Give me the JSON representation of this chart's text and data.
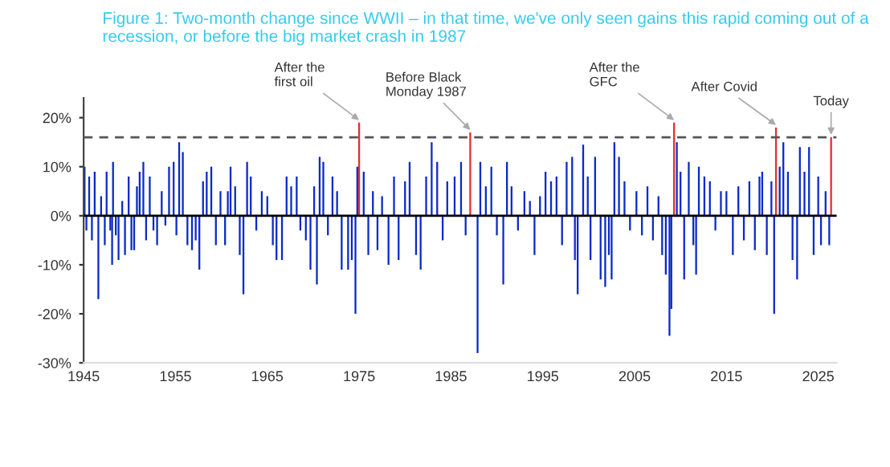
{
  "chart_data": {
    "type": "bar",
    "title": "Figure 1: Two-month change since WWII – in that time, we've only seen gains this rapid coming out of a recession, or before the big market crash in 1987",
    "xlim": [
      1945,
      2027
    ],
    "xticks": [
      1945,
      1955,
      1965,
      1975,
      1985,
      1995,
      2005,
      2015,
      2025
    ],
    "ylim": [
      -30,
      24
    ],
    "yticks": [
      {
        "value": -30,
        "label": "-30%"
      },
      {
        "value": -20,
        "label": "-20%"
      },
      {
        "value": -10,
        "label": "-10%"
      },
      {
        "value": 0,
        "label": "0%"
      },
      {
        "value": 10,
        "label": "10%"
      },
      {
        "value": 20,
        "label": "20%"
      }
    ],
    "grid": false,
    "series": [
      {
        "color": "#0a2ac8",
        "x": [
          1945.1,
          1945.3,
          1945.6,
          1945.9,
          1946.2,
          1946.6,
          1946.9,
          1947.3,
          1947.5,
          1947.9,
          1948.1,
          1948.2,
          1948.5,
          1948.8,
          1949.2,
          1949.5,
          1949.9,
          1950.2,
          1950.5,
          1950.8,
          1951.1,
          1951.5,
          1951.8,
          1952.2,
          1952.6,
          1953.0,
          1953.5,
          1953.9,
          1954.3,
          1954.8,
          1955.1,
          1955.4,
          1955.8,
          1956.3,
          1956.8,
          1957.2,
          1957.6,
          1958.0,
          1958.4,
          1958.9,
          1959.4,
          1959.9,
          1960.4,
          1960.7,
          1961.0,
          1961.5,
          1962.0,
          1962.4,
          1962.8,
          1963.2,
          1963.8,
          1964.4,
          1965.0,
          1965.6,
          1966.0,
          1966.6,
          1967.1,
          1967.6,
          1968.2,
          1968.6,
          1969.2,
          1969.7,
          1970.1,
          1970.4,
          1970.7,
          1971.1,
          1971.6,
          1972.1,
          1972.6,
          1973.1,
          1973.8,
          1974.2,
          1974.6,
          1974.8,
          1975.5,
          1976.0,
          1976.5,
          1977.0,
          1977.5,
          1978.2,
          1978.8,
          1979.3,
          1980.0,
          1980.5,
          1981.2,
          1981.7,
          1982.3,
          1982.9,
          1983.5,
          1984.1,
          1984.6,
          1985.4,
          1986.1,
          1986.6,
          1987.9,
          1988.2,
          1988.8,
          1989.4,
          1990.0,
          1990.7,
          1991.1,
          1991.6,
          1992.3,
          1993.0,
          1993.6,
          1994.1,
          1994.7,
          1995.3,
          1995.9,
          1996.5,
          1997.1,
          1997.6,
          1998.2,
          1998.5,
          1998.8,
          1999.4,
          1999.9,
          2000.2,
          2000.7,
          2001.3,
          2001.8,
          2002.2,
          2002.5,
          2002.8,
          2003.3,
          2003.9,
          2004.5,
          2005.2,
          2005.8,
          2006.4,
          2007.0,
          2007.6,
          2008.0,
          2008.4,
          2008.8,
          2009.0,
          2009.6,
          2010.0,
          2010.4,
          2010.9,
          2011.4,
          2011.7,
          2012.0,
          2012.6,
          2013.2,
          2013.8,
          2014.4,
          2015.0,
          2015.7,
          2016.3,
          2016.9,
          2017.5,
          2018.1,
          2018.6,
          2018.9,
          2019.4,
          2019.9,
          2020.2,
          2020.8,
          2021.2,
          2021.7,
          2022.2,
          2022.7,
          2023.0,
          2023.5,
          2024.0,
          2024.5,
          2025.0,
          2025.3,
          2025.8,
          2026.2
        ],
        "values": [
          10,
          -3,
          8,
          -5,
          9,
          -17,
          4,
          -6,
          9,
          -3,
          -10,
          11,
          -4,
          -9,
          3,
          -8,
          8,
          -7,
          -7,
          6,
          9,
          11,
          -5,
          8,
          -3,
          -6,
          5,
          -2,
          10,
          11,
          -4,
          15,
          13,
          -6,
          -7,
          -5,
          -11,
          7,
          9,
          10,
          -6,
          5,
          -6,
          5,
          10,
          6,
          -8,
          -16,
          11,
          8,
          -3,
          5,
          4,
          -6,
          -9,
          -9,
          8,
          6,
          8,
          -3,
          -5,
          -11,
          6,
          -14,
          12,
          11,
          -4,
          8,
          5,
          -11,
          -11,
          -9,
          -20,
          10,
          9,
          -8,
          5,
          -7,
          4,
          -10,
          8,
          -9,
          7,
          11,
          -8,
          -11,
          8,
          15,
          11,
          -5,
          7,
          8,
          11,
          -4,
          -28,
          11,
          6,
          10,
          -4,
          -14,
          11,
          6,
          -3,
          5,
          3,
          -8,
          4,
          9,
          7,
          8,
          -6,
          11,
          12,
          -9,
          -16,
          14.5,
          8,
          -9,
          12,
          -13,
          -14.5,
          -8,
          -13,
          15,
          12,
          7,
          -3,
          5,
          -4,
          6,
          -5,
          4,
          -8,
          -12,
          -24.5,
          -19,
          15,
          9,
          -13,
          11,
          -6,
          -12,
          10,
          8,
          7,
          -3,
          5,
          5,
          -8,
          6,
          -5,
          7,
          -7,
          8,
          9,
          -8,
          7,
          -20,
          10,
          15,
          9,
          -9,
          -13,
          14,
          9,
          14,
          -8,
          8,
          -6,
          5,
          -6
        ]
      },
      {
        "color": "#e03030",
        "x": [
          1975.0,
          1987.1,
          2009.3,
          2020.4,
          2026.4
        ],
        "values": [
          19,
          17,
          19,
          18,
          16
        ]
      }
    ],
    "ref_lines": [
      {
        "axis": "y",
        "value": 16,
        "color": "#555555",
        "line_style": "dashed"
      },
      {
        "axis": "y",
        "value": 0,
        "color": "#000000",
        "line_style": "solid"
      }
    ],
    "annotations": [
      {
        "text": "After the\nfirst oil",
        "x": 1975.0,
        "y": 19
      },
      {
        "text": "Before Black\nMonday 1987",
        "x": 1987.1,
        "y": 17
      },
      {
        "text": "After the\nGFC",
        "x": 2009.3,
        "y": 19
      },
      {
        "text": "After Covid",
        "x": 2020.4,
        "y": 18
      },
      {
        "text": "Today",
        "x": 2026.4,
        "y": 16
      }
    ]
  }
}
